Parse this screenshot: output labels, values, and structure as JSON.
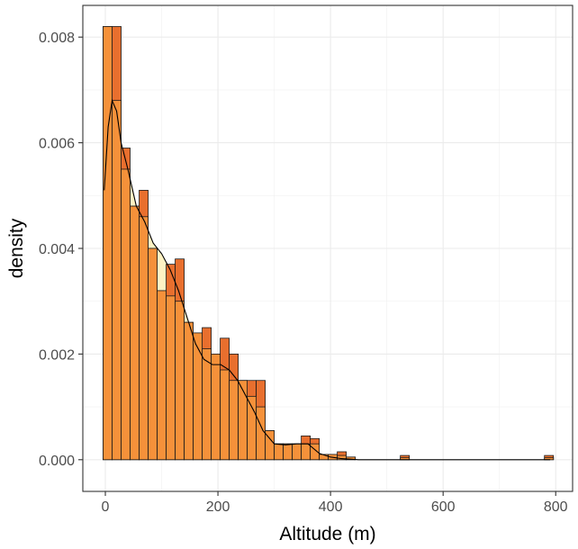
{
  "chart_data": {
    "type": "bar",
    "title": "",
    "xlabel": "Altitude (m)",
    "ylabel": "density",
    "xlim": [
      -40,
      830
    ],
    "ylim": [
      -0.0006,
      0.0086
    ],
    "grid": true,
    "legend": "none",
    "x_ticks": [
      0,
      200,
      400,
      600,
      800
    ],
    "x_tick_labels": [
      "0",
      "200",
      "400",
      "600",
      "800"
    ],
    "y_ticks": [
      0,
      0.002,
      0.004,
      0.006,
      0.008
    ],
    "y_tick_labels": [
      "0.000",
      "0.002",
      "0.004",
      "0.006",
      "0.008"
    ],
    "bin_width": 16,
    "bin_starts": [
      -4,
      12,
      28,
      44,
      60,
      76,
      92,
      108,
      124,
      140,
      156,
      172,
      188,
      204,
      220,
      236,
      252,
      268,
      284,
      300,
      316,
      332,
      348,
      364,
      380,
      396,
      412,
      428,
      444,
      460,
      476,
      492,
      508,
      524,
      540,
      556,
      572,
      588,
      604,
      620,
      636,
      652,
      668,
      684,
      700,
      716,
      732,
      748,
      764,
      780
    ],
    "series": [
      {
        "name": "",
        "color": "#e86f2e",
        "values": [
          0.0082,
          0.0082,
          0.0059,
          0.0048,
          0.0051,
          0.004,
          0.0032,
          0.0037,
          0.0038,
          0.0026,
          0.0024,
          0.0025,
          0.002,
          0.0023,
          0.002,
          0.0015,
          0.0015,
          0.0015,
          0.00055,
          0.0003,
          0.0003,
          0.0003,
          0.00045,
          0.0004,
          0.0001,
          0.0001,
          0.00015,
          5e-05,
          0,
          0,
          0,
          0,
          0,
          8e-05,
          0,
          0,
          0,
          0,
          0,
          0,
          0,
          0,
          0,
          0,
          0,
          0,
          0,
          0,
          0,
          8e-05
        ]
      },
      {
        "name": "",
        "color": "#f5913a",
        "values": [
          0.0082,
          0.0068,
          0.0055,
          0.0048,
          0.0046,
          0.004,
          0.0032,
          0.0031,
          0.003,
          0.0026,
          0.0024,
          0.0021,
          0.002,
          0.0017,
          0.0015,
          0.0015,
          0.0012,
          0.001,
          0.00055,
          0.0003,
          0.0003,
          0.0003,
          0.0003,
          0.0003,
          0.0001,
          0.0001,
          8e-05,
          5e-05,
          0,
          0,
          0,
          0,
          0,
          4e-05,
          0,
          0,
          0,
          0,
          0,
          0,
          0,
          0,
          0,
          0,
          0,
          0,
          0,
          0,
          0,
          4e-05
        ]
      }
    ],
    "density_fill": "#fff3c4",
    "density_curve": {
      "x": [
        -2,
        5,
        12,
        20,
        28,
        40,
        55,
        70,
        85,
        100,
        115,
        130,
        145,
        160,
        175,
        190,
        205,
        220,
        235,
        250,
        265,
        280,
        300,
        320,
        340,
        360,
        380,
        400,
        420,
        450,
        500,
        550,
        600,
        650,
        700,
        750,
        790
      ],
      "y": [
        0.0051,
        0.0063,
        0.0068,
        0.0066,
        0.006,
        0.0055,
        0.0048,
        0.0045,
        0.0041,
        0.0039,
        0.0036,
        0.0032,
        0.0027,
        0.0022,
        0.0019,
        0.0018,
        0.0018,
        0.0017,
        0.0015,
        0.0012,
        0.0009,
        0.00055,
        0.0003,
        0.00028,
        0.0003,
        0.0003,
        0.00012,
        5e-05,
        2e-05,
        0.0,
        0.0,
        0.0,
        0.0,
        0.0,
        0.0,
        0.0,
        0.0
      ]
    }
  }
}
